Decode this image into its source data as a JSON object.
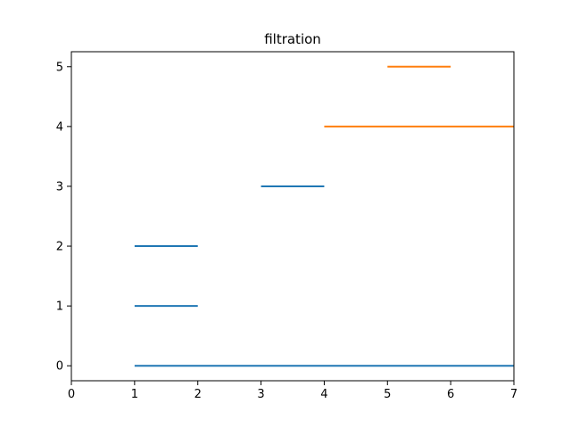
{
  "chart_data": {
    "type": "line",
    "title": "filtration",
    "xlabel": "",
    "ylabel": "",
    "xlim": [
      0,
      7
    ],
    "ylim": [
      -0.25,
      5.25
    ],
    "xticks": [
      0,
      1,
      2,
      3,
      4,
      5,
      6,
      7
    ],
    "yticks": [
      0,
      1,
      2,
      3,
      4,
      5
    ],
    "grid": false,
    "colors": {
      "blue": "#1f77b4",
      "orange": "#ff7f0e"
    },
    "segments": [
      {
        "y": 0,
        "x_start": 1,
        "x_end": 7,
        "color": "#1f77b4"
      },
      {
        "y": 1,
        "x_start": 1,
        "x_end": 2,
        "color": "#1f77b4"
      },
      {
        "y": 2,
        "x_start": 1,
        "x_end": 2,
        "color": "#1f77b4"
      },
      {
        "y": 3,
        "x_start": 3,
        "x_end": 4,
        "color": "#1f77b4"
      },
      {
        "y": 4,
        "x_start": 4,
        "x_end": 7,
        "color": "#ff7f0e"
      },
      {
        "y": 5,
        "x_start": 5,
        "x_end": 6,
        "color": "#ff7f0e"
      }
    ]
  }
}
